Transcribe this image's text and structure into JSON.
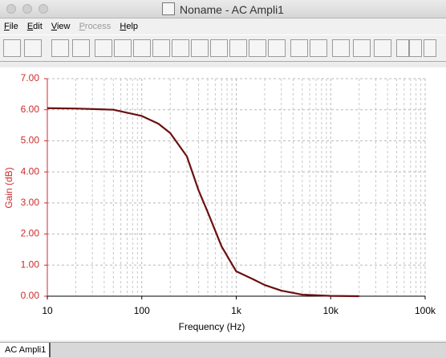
{
  "window": {
    "title": "Noname - AC Ampli1"
  },
  "menu": [
    "File",
    "Edit",
    "View",
    "Process",
    "Help"
  ],
  "tab": "AC Ampli1",
  "chart_data": {
    "type": "line",
    "x_label": "Frequency (Hz)",
    "y_label": "Gain (dB)",
    "x": [
      10,
      20,
      50,
      100,
      150,
      200,
      300,
      400,
      500,
      700,
      1000,
      1500,
      2000,
      3000,
      5000,
      10000,
      20000
    ],
    "values": [
      6.05,
      6.04,
      6.0,
      5.8,
      5.55,
      5.25,
      4.5,
      3.4,
      2.7,
      1.6,
      0.8,
      0.55,
      0.36,
      0.18,
      0.05,
      0.01,
      0.0
    ],
    "color": "#6b1010",
    "xscale": "log",
    "xlim": [
      10,
      100000
    ],
    "xticks": [
      10,
      100,
      {
        "value": 1000,
        "label": "1k"
      },
      {
        "value": 10000,
        "label": "10k"
      },
      {
        "value": 100000,
        "label": "100k"
      }
    ],
    "ylim": [
      0,
      7
    ],
    "yticks": [
      {
        "value": 0,
        "label": "0.00"
      },
      {
        "value": 1,
        "label": "1.00"
      },
      {
        "value": 2,
        "label": "2.00"
      },
      {
        "value": 3,
        "label": "3.00"
      },
      {
        "value": 4,
        "label": "4.00"
      },
      {
        "value": 5,
        "label": "5.00"
      },
      {
        "value": 6,
        "label": "6.00"
      },
      {
        "value": 7,
        "label": "7.00"
      }
    ],
    "grid": true
  }
}
